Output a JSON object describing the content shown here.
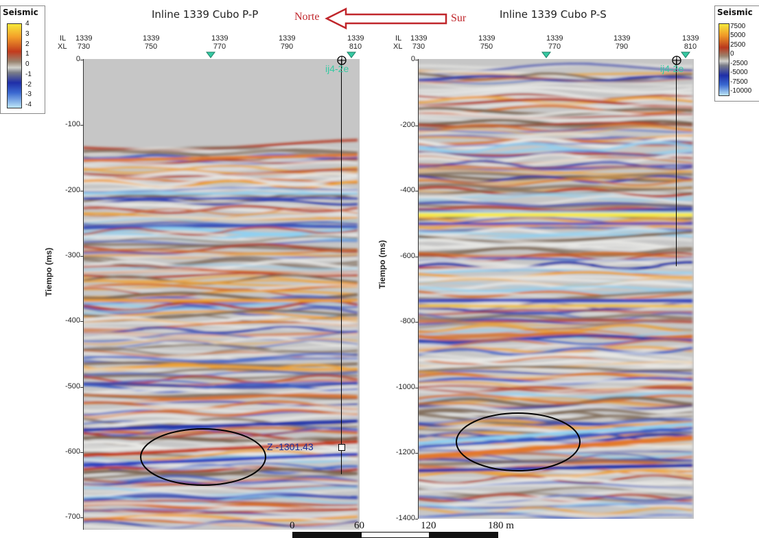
{
  "panels": [
    {
      "title": "Inline 1339 Cubo P-P",
      "il_label": "IL",
      "xl_label": "XL",
      "il_values": [
        "1339",
        "1339",
        "1339",
        "1339",
        "1339"
      ],
      "xl_values": [
        "730",
        "750",
        "770",
        "790",
        "810"
      ],
      "y_axis_title": "Tiempo (ms)",
      "y_ticks": [
        "0",
        "-100",
        "-200",
        "-300",
        "-400",
        "-500",
        "-600",
        "-700"
      ],
      "well_label": "ij4-2e",
      "z_readout": "Z -1301.43"
    },
    {
      "title": "Inline 1339 Cubo P-S",
      "il_label": "IL",
      "xl_label": "XL",
      "il_values": [
        "1339",
        "1339",
        "1339",
        "1339",
        "1339"
      ],
      "xl_values": [
        "730",
        "750",
        "770",
        "790",
        "810"
      ],
      "y_axis_title": "Tiempo (ms)",
      "y_ticks": [
        "0",
        "-200",
        "-400",
        "-600",
        "-800",
        "-1000",
        "-1200",
        "-1400"
      ],
      "well_label": "ij4-2e"
    }
  ],
  "direction": {
    "left": "Norte",
    "right": "Sur"
  },
  "colorbars": [
    {
      "title": "Seismic",
      "ticks": [
        "4",
        "3",
        "2",
        "1",
        "0",
        "-1",
        "-2",
        "-3",
        "-4"
      ]
    },
    {
      "title": "Seismic",
      "ticks": [
        "7500",
        "5000",
        "2500",
        "0",
        "-2500",
        "-5000",
        "-7500",
        "-10000"
      ]
    }
  ],
  "scale_bar": {
    "labels": [
      "0",
      "60",
      "120",
      "180 m"
    ]
  },
  "colors": {
    "arrow": "#c0262b",
    "well_text": "#35c9a2",
    "ellipse": "#000000"
  }
}
